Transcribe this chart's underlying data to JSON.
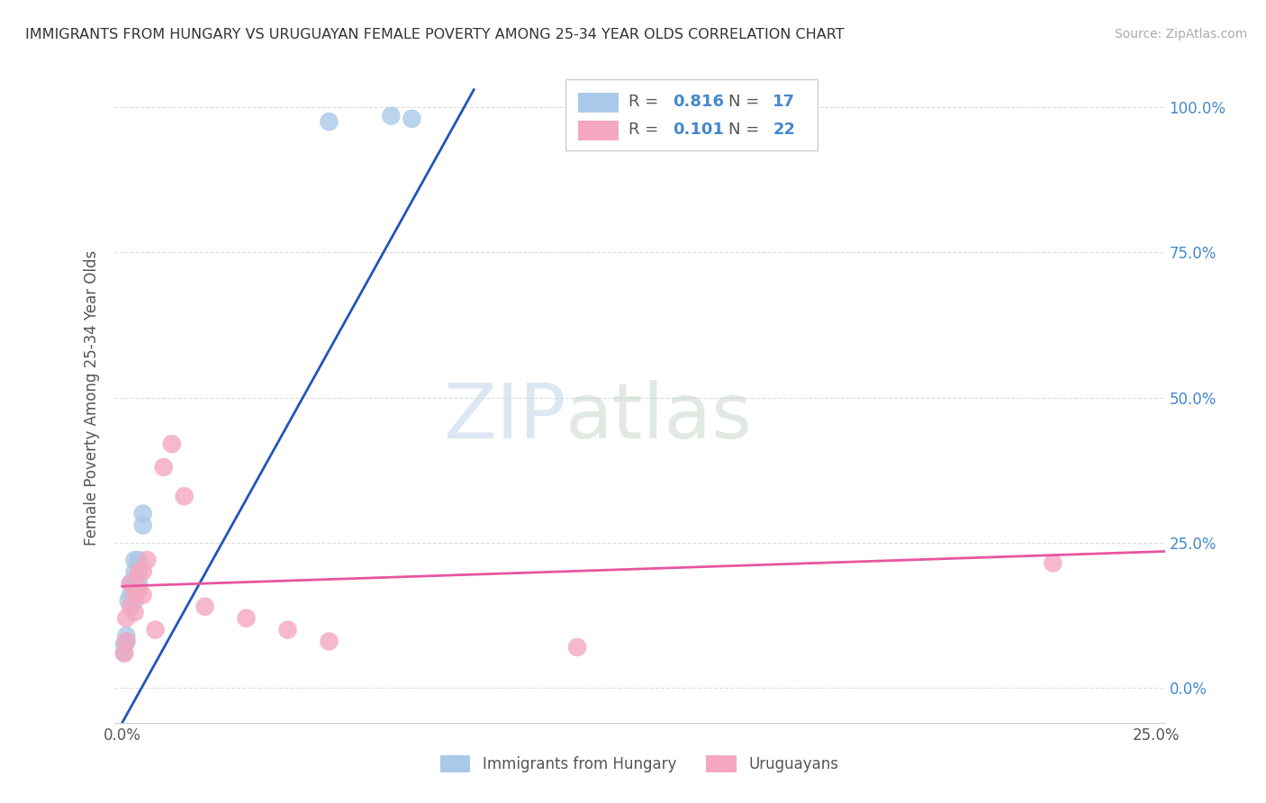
{
  "title": "IMMIGRANTS FROM HUNGARY VS URUGUAYAN FEMALE POVERTY AMONG 25-34 YEAR OLDS CORRELATION CHART",
  "source": "Source: ZipAtlas.com",
  "ylabel": "Female Poverty Among 25-34 Year Olds",
  "xlabel_blue": "Immigrants from Hungary",
  "xlabel_pink": "Uruguayans",
  "xlim": [
    -0.002,
    0.252
  ],
  "ylim": [
    -0.06,
    1.06
  ],
  "x_ticks": [
    0.0,
    0.05,
    0.1,
    0.15,
    0.2,
    0.25
  ],
  "x_tick_labels": [
    "0.0%",
    "",
    "",
    "",
    "",
    "25.0%"
  ],
  "y_ticks": [
    0.0,
    0.25,
    0.5,
    0.75,
    1.0
  ],
  "y_tick_labels_right": [
    "0.0%",
    "25.0%",
    "50.0%",
    "75.0%",
    "100.0%"
  ],
  "r_blue": 0.816,
  "n_blue": 17,
  "r_pink": 0.101,
  "n_pink": 22,
  "blue_color": "#aac8e8",
  "pink_color": "#f4a8c0",
  "blue_line_color": "#2255bb",
  "pink_line_color": "#e855a0",
  "blue_scatter_x": [
    0.0005,
    0.0005,
    0.001,
    0.001,
    0.0015,
    0.002,
    0.002,
    0.003,
    0.003,
    0.003,
    0.004,
    0.004,
    0.005,
    0.005,
    0.05,
    0.065,
    0.07
  ],
  "blue_scatter_y": [
    0.06,
    0.075,
    0.08,
    0.09,
    0.15,
    0.16,
    0.18,
    0.15,
    0.2,
    0.22,
    0.18,
    0.22,
    0.28,
    0.3,
    0.975,
    0.985,
    0.98
  ],
  "pink_scatter_x": [
    0.0005,
    0.001,
    0.001,
    0.002,
    0.002,
    0.003,
    0.003,
    0.004,
    0.004,
    0.005,
    0.005,
    0.006,
    0.008,
    0.01,
    0.012,
    0.015,
    0.02,
    0.03,
    0.04,
    0.05,
    0.11,
    0.225
  ],
  "pink_scatter_y": [
    0.06,
    0.08,
    0.12,
    0.14,
    0.18,
    0.16,
    0.13,
    0.2,
    0.17,
    0.2,
    0.16,
    0.22,
    0.1,
    0.38,
    0.42,
    0.33,
    0.14,
    0.12,
    0.1,
    0.08,
    0.07,
    0.215
  ],
  "blue_line_x0": 0.0,
  "blue_line_y0": -0.06,
  "blue_line_x1": 0.085,
  "blue_line_y1": 1.03,
  "pink_line_x0": 0.0,
  "pink_line_y0": 0.175,
  "pink_line_x1": 0.252,
  "pink_line_y1": 0.235,
  "watermark_zip": "ZIP",
  "watermark_atlas": "atlas",
  "background_color": "#ffffff",
  "grid_color": "#dddddd",
  "legend_r_blue": "0.816",
  "legend_n_blue": "17",
  "legend_r_pink": "0.101",
  "legend_n_pink": "22"
}
